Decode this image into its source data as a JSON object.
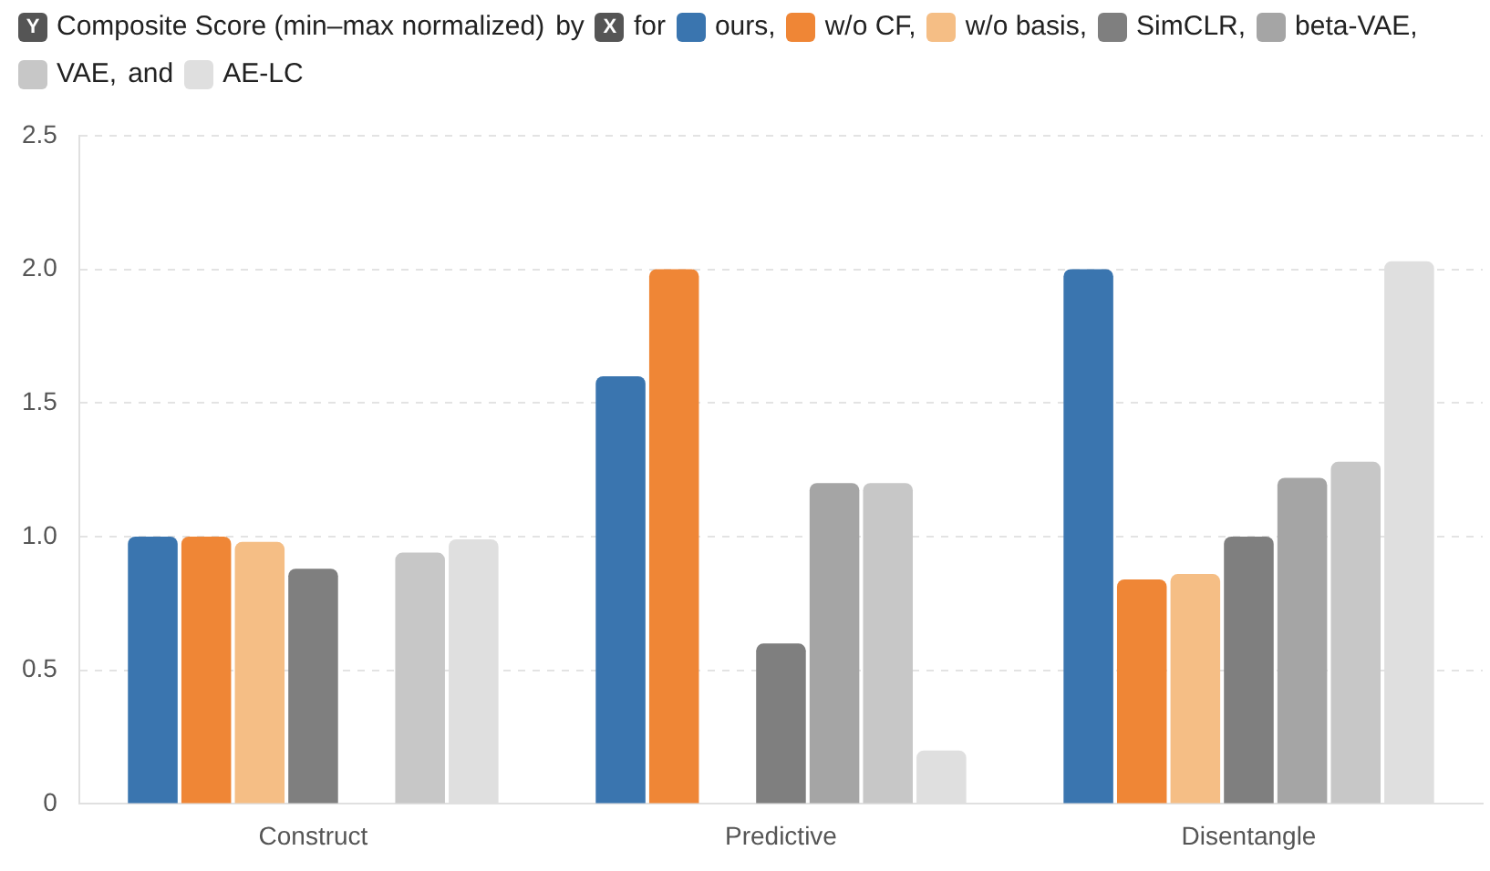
{
  "chart_data": {
    "type": "bar",
    "title": "Composite Score (min–max normalized)",
    "annotations": [
      "Y",
      "by",
      "X",
      "for",
      ",",
      "and"
    ],
    "categories": [
      "Construct",
      "Predictive",
      "Disentangle"
    ],
    "series": [
      {
        "name": "ours",
        "color": "#3a75af",
        "values": [
          1.0,
          1.6,
          2.0
        ]
      },
      {
        "name": "w/o CF",
        "color": "#ef8636",
        "values": [
          1.0,
          2.0,
          0.84
        ]
      },
      {
        "name": "w/o basis",
        "color": "#f5be85",
        "values": [
          0.98,
          null,
          0.86
        ]
      },
      {
        "name": "SimCLR",
        "color": "#7f7f7f",
        "values": [
          0.88,
          0.6,
          1.0
        ]
      },
      {
        "name": "beta-VAE",
        "color": "#a5a5a5",
        "values": [
          null,
          1.2,
          1.22
        ]
      },
      {
        "name": "VAE",
        "color": "#c7c7c7",
        "values": [
          0.94,
          1.2,
          1.28
        ]
      },
      {
        "name": "AE-LC",
        "color": "#dfdfdf",
        "values": [
          0.99,
          0.2,
          2.03
        ]
      }
    ],
    "ylim": [
      0,
      2.5
    ],
    "yticks": [
      0,
      0.5,
      {
        "value": 1,
        "label": "1.0"
      },
      1.5,
      {
        "value": 2,
        "label": "2.0"
      },
      2.5
    ],
    "grid": "y",
    "legend": "top"
  }
}
